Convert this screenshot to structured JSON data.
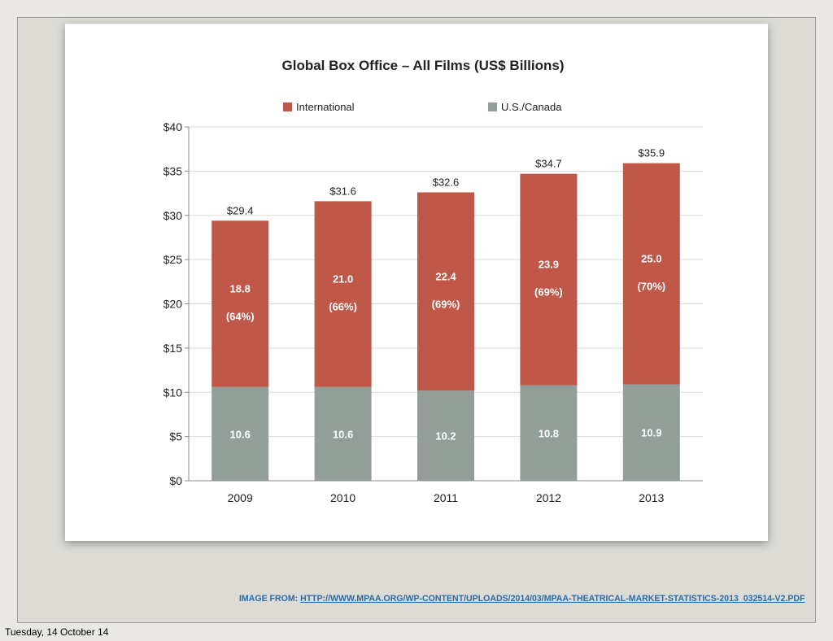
{
  "slide": {
    "caption_prefix": "IMAGE FROM: ",
    "caption_url": "HTTP://WWW.MPAA.ORG/WP-CONTENT/UPLOADS/2014/03/MPAA-THEATRICAL-MARKET-STATISTICS-2013_032514-V2.PDF",
    "date": "Tuesday, 14 October 14"
  },
  "chart_data": {
    "type": "bar",
    "stacked": true,
    "title": "Global Box Office – All Films (US$ Billions)",
    "xlabel": "",
    "ylabel": "",
    "categories": [
      "2009",
      "2010",
      "2011",
      "2012",
      "2013"
    ],
    "series": [
      {
        "name": "U.S./Canada",
        "color": "#949e98",
        "values": [
          10.6,
          10.6,
          10.2,
          10.8,
          10.9
        ],
        "labels": [
          "10.6",
          "10.6",
          "10.2",
          "10.8",
          "10.9"
        ]
      },
      {
        "name": "International",
        "color": "#c0584a",
        "values": [
          18.8,
          21.0,
          22.4,
          23.9,
          25.0
        ],
        "labels": [
          "18.8",
          "21.0",
          "22.4",
          "23.9",
          "25.0"
        ],
        "share_labels": [
          "(64%)",
          "(66%)",
          "(69%)",
          "(69%)",
          "(70%)"
        ]
      }
    ],
    "totals": [
      29.4,
      31.6,
      32.6,
      34.7,
      35.9
    ],
    "total_labels": [
      "$29.4",
      "$31.6",
      "$32.6",
      "$34.7",
      "$35.9"
    ],
    "legend_order": [
      "International",
      "U.S./Canada"
    ],
    "legend_position": "top",
    "ylim": [
      0,
      40
    ],
    "yticks": [
      0,
      5,
      10,
      15,
      20,
      25,
      30,
      35,
      40
    ],
    "ytick_labels": [
      "$0",
      "$5",
      "$10",
      "$15",
      "$20",
      "$25",
      "$30",
      "$35",
      "$40"
    ],
    "grid": true
  }
}
